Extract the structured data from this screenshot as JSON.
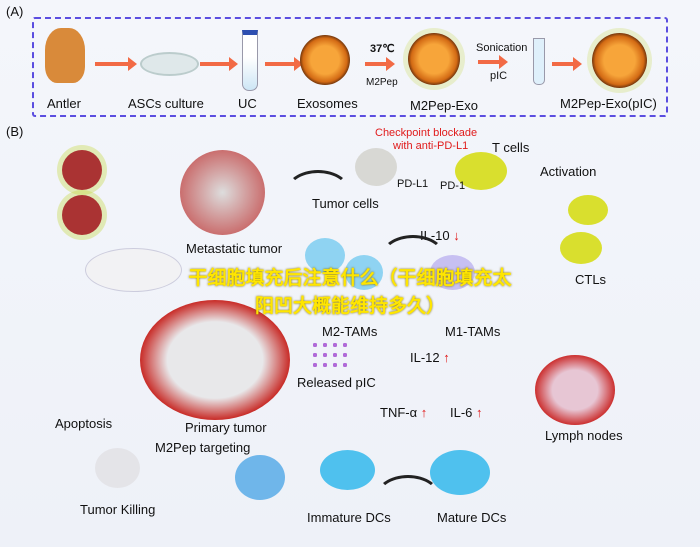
{
  "panel_a": {
    "tag": "(A)",
    "steps": [
      "Antler",
      "ASCs culture",
      "UC",
      "Exosomes",
      "M2Pep-Exo",
      "M2Pep-Exo(pIC)"
    ],
    "temp": "37℃",
    "m2pep": "M2Pep",
    "sonication": "Sonication",
    "pic": "pIC"
  },
  "panel_b": {
    "tag": "(B)",
    "checkpoint_line1": "Checkpoint blockade",
    "checkpoint_line2": "with anti-PD-L1",
    "t_cells": "T cells",
    "pd_l1": "PD-L1",
    "pd_1": "PD-1",
    "tumor_cells": "Tumor cells",
    "activation": "Activation",
    "metastatic": "Metastatic tumor",
    "il10": "IL-10",
    "il10_arrow": "↓",
    "m2_tams": "M2-TAMs",
    "m1_tams": "M1-TAMs",
    "ctls": "CTLs",
    "il12": "IL-12",
    "up": "↑",
    "released_pic": "Released pIC",
    "primary": "Primary tumor",
    "m2pep_targeting": "M2Pep targeting",
    "apoptosis": "Apoptosis",
    "tnf": "TNF-α",
    "il6": "IL-6",
    "lymph": "Lymph nodes",
    "tumor_killing": "Tumor Killing",
    "immature": "Immature DCs",
    "mature": "Mature DCs"
  },
  "overlay": {
    "text": "干细胞填充后注意什么（干细胞填充太阳凹大概能维持多久）"
  },
  "colors": {
    "border": "#5b4de0",
    "arrow": "#f26a45",
    "red": "#e01b1b",
    "overlay": "#ffe600"
  }
}
